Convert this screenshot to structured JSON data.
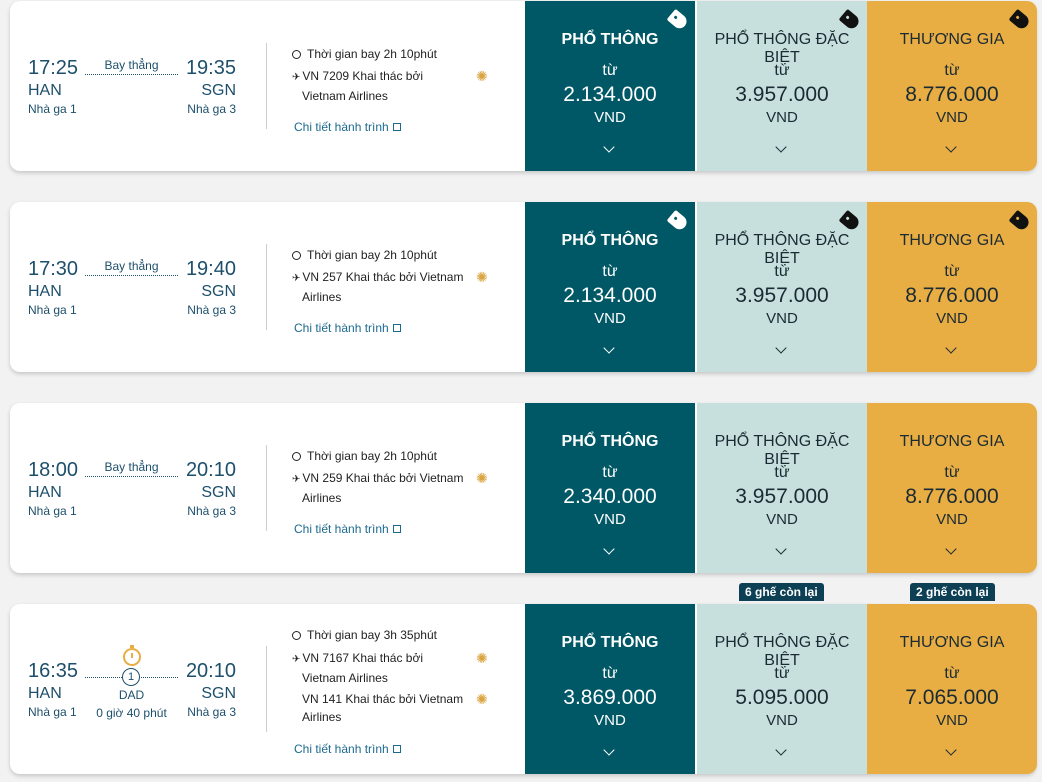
{
  "flights": [
    {
      "dep_time": "17:25",
      "arr_time": "19:35",
      "dep_code": "HAN",
      "arr_code": "SGN",
      "dep_terminal": "Nhà ga 1",
      "arr_terminal": "Nhà ga 3",
      "route": "Bay thẳng",
      "duration": "Thời gian bay 2h 10phút",
      "segments": [
        {
          "text1": "VN 7209 Khai thác bởi",
          "text2": "Vietnam Airlines"
        }
      ],
      "details": "Chi tiết hành trình",
      "fares": [
        {
          "cls": "PHỔ THÔNG",
          "from": "từ",
          "amount": "2.134.000",
          "cur": "VND"
        },
        {
          "cls": "PHỔ THÔNG ĐẶC BIỆT",
          "from": "từ",
          "amount": "3.957.000",
          "cur": "VND"
        },
        {
          "cls": "THƯƠNG GIA",
          "from": "từ",
          "amount": "8.776.000",
          "cur": "VND"
        }
      ]
    },
    {
      "dep_time": "17:30",
      "arr_time": "19:40",
      "dep_code": "HAN",
      "arr_code": "SGN",
      "dep_terminal": "Nhà ga 1",
      "arr_terminal": "Nhà ga 3",
      "route": "Bay thẳng",
      "duration": "Thời gian bay 2h 10phút",
      "segments": [
        {
          "text1": "VN 257 Khai thác bởi Vietnam",
          "text2": "Airlines"
        }
      ],
      "details": "Chi tiết hành trình",
      "fares": [
        {
          "cls": "PHỔ THÔNG",
          "from": "từ",
          "amount": "2.134.000",
          "cur": "VND"
        },
        {
          "cls": "PHỔ THÔNG ĐẶC BIỆT",
          "from": "từ",
          "amount": "3.957.000",
          "cur": "VND"
        },
        {
          "cls": "THƯƠNG GIA",
          "from": "từ",
          "amount": "8.776.000",
          "cur": "VND"
        }
      ]
    },
    {
      "dep_time": "18:00",
      "arr_time": "20:10",
      "dep_code": "HAN",
      "arr_code": "SGN",
      "dep_terminal": "Nhà ga 1",
      "arr_terminal": "Nhà ga 3",
      "route": "Bay thẳng",
      "duration": "Thời gian bay 2h 10phút",
      "segments": [
        {
          "text1": "VN 259 Khai thác bởi Vietnam",
          "text2": "Airlines"
        }
      ],
      "details": "Chi tiết hành trình",
      "fares": [
        {
          "cls": "PHỔ THÔNG",
          "from": "từ",
          "amount": "2.340.000",
          "cur": "VND"
        },
        {
          "cls": "PHỔ THÔNG ĐẶC BIỆT",
          "from": "từ",
          "amount": "3.957.000",
          "cur": "VND"
        },
        {
          "cls": "THƯƠNG GIA",
          "from": "từ",
          "amount": "8.776.000",
          "cur": "VND"
        }
      ]
    },
    {
      "dep_time": "16:35",
      "arr_time": "20:10",
      "dep_code": "HAN",
      "arr_code": "SGN",
      "dep_terminal": "Nhà ga 1",
      "arr_terminal": "Nhà ga 3",
      "stops": "1",
      "stop_code": "DAD",
      "layover": "0 giờ 40 phút",
      "duration": "Thời gian bay 3h 35phút",
      "segments": [
        {
          "text1": "VN 7167 Khai thác bởi",
          "text2": "Vietnam Airlines"
        },
        {
          "text1": "VN 141 Khai thác bởi Vietnam",
          "text2": "Airlines"
        }
      ],
      "details": "Chi tiết hành trình",
      "seats_left": [
        "6 ghế còn lại",
        "2 ghế còn lại"
      ],
      "fares": [
        {
          "cls": "PHỔ THÔNG",
          "from": "từ",
          "amount": "3.869.000",
          "cur": "VND"
        },
        {
          "cls": "PHỔ THÔNG ĐẶC BIỆT",
          "from": "từ",
          "amount": "5.095.000",
          "cur": "VND"
        },
        {
          "cls": "THƯƠNG GIA",
          "from": "từ",
          "amount": "7.065.000",
          "cur": "VND"
        }
      ]
    }
  ],
  "colors": {
    "economy": "#005866",
    "premium": "#c7e0de",
    "business": "#e8ad43",
    "text": "#1d4f6b"
  }
}
